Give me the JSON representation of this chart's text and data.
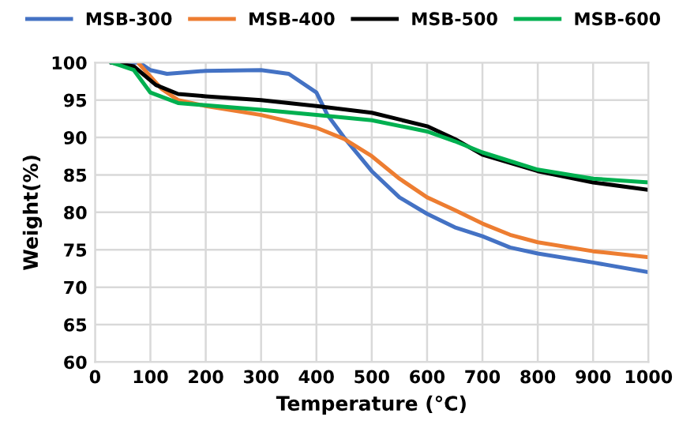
{
  "chart_data": {
    "type": "line",
    "xlabel": "Temperature (°C)",
    "ylabel": "Weight(%)",
    "xlim": [
      0,
      1000
    ],
    "xticks": [
      0,
      100,
      200,
      300,
      400,
      500,
      600,
      700,
      800,
      900,
      1000
    ],
    "ylim": [
      60,
      100
    ],
    "yticks": [
      60,
      65,
      70,
      75,
      80,
      85,
      90,
      95,
      100
    ],
    "grid": true,
    "legend": "top",
    "marker": "none",
    "line_style": "solid",
    "series": [
      {
        "name": "MSB-300",
        "color": "#4472c4",
        "x": [
          30,
          80,
          100,
          130,
          200,
          300,
          350,
          400,
          420,
          450,
          500,
          550,
          600,
          650,
          700,
          750,
          800,
          900,
          1000
        ],
        "values": [
          100,
          100,
          99,
          98.5,
          98.9,
          99,
          98.5,
          96,
          93,
          90,
          85.5,
          82,
          79.8,
          78,
          76.8,
          75.3,
          74.5,
          73.3,
          72
        ]
      },
      {
        "name": "MSB-400",
        "color": "#ed7d31",
        "x": [
          80,
          120,
          150,
          200,
          300,
          400,
          450,
          500,
          550,
          600,
          650,
          700,
          750,
          800,
          900,
          1000
        ],
        "values": [
          99.8,
          96.5,
          95,
          94.2,
          93,
          91.3,
          89.8,
          87.5,
          84.5,
          82,
          80.3,
          78.5,
          77,
          76,
          74.8,
          74
        ]
      },
      {
        "name": "MSB-500",
        "color": "#000000",
        "x": [
          30,
          70,
          110,
          150,
          200,
          300,
          400,
          500,
          600,
          650,
          700,
          800,
          900,
          1000
        ],
        "values": [
          100,
          99.5,
          97,
          95.8,
          95.5,
          95,
          94.2,
          93.3,
          91.5,
          89.8,
          87.7,
          85.5,
          84,
          83
        ]
      },
      {
        "name": "MSB-600",
        "color": "#00b050",
        "x": [
          30,
          70,
          100,
          150,
          200,
          300,
          400,
          500,
          600,
          650,
          700,
          800,
          900,
          1000
        ],
        "values": [
          100,
          99,
          96,
          94.6,
          94.3,
          93.7,
          93,
          92.3,
          90.8,
          89.5,
          88,
          85.7,
          84.5,
          84
        ]
      }
    ]
  }
}
